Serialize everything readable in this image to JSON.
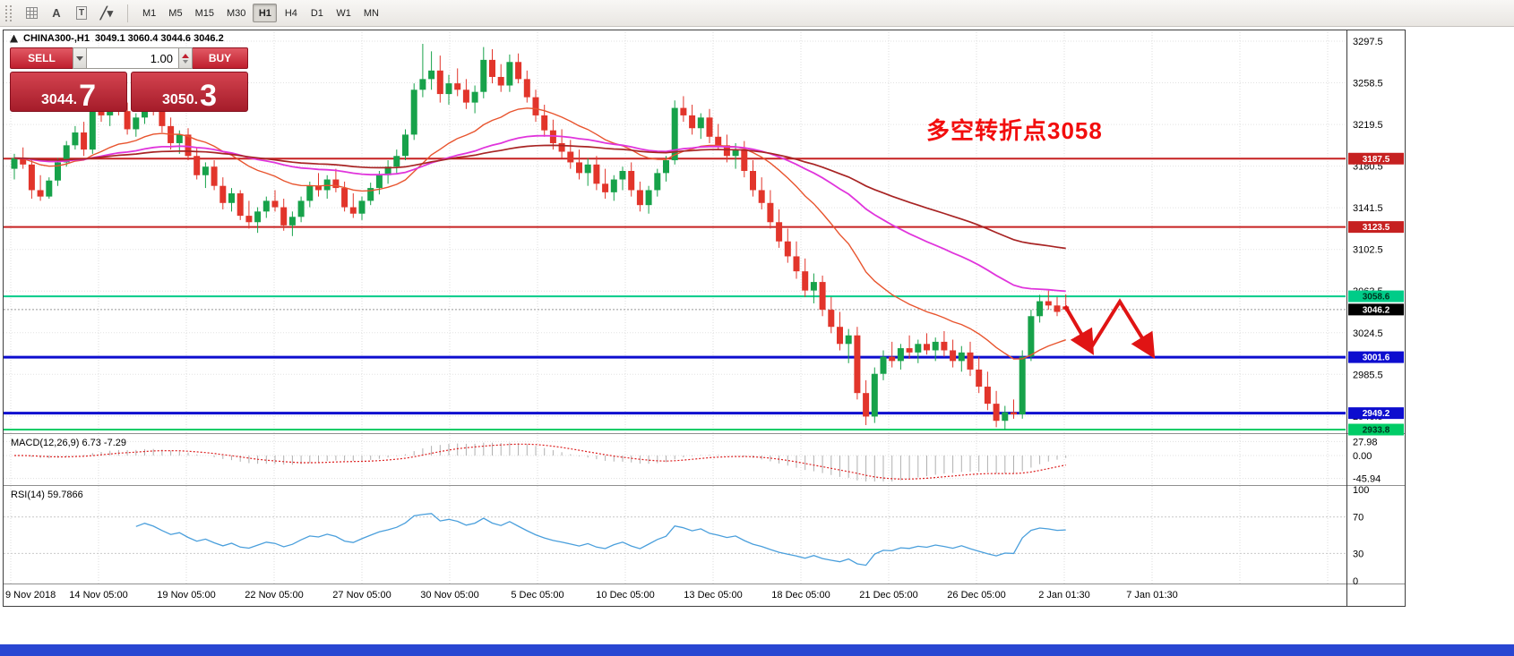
{
  "toolbar": {
    "icons": [
      {
        "name": "toolbar-grip-icon",
        "type": "grip"
      },
      {
        "name": "crosshair-grid-icon",
        "type": "grid"
      },
      {
        "name": "text-annotation-icon",
        "glyph": "A"
      },
      {
        "name": "text-label-icon",
        "glyph": "T",
        "boxed": true
      },
      {
        "name": "draw-shapes-icon",
        "glyph": "╱▾"
      }
    ],
    "timeframes": [
      {
        "label": "M1",
        "active": false
      },
      {
        "label": "M5",
        "active": false
      },
      {
        "label": "M15",
        "active": false
      },
      {
        "label": "M30",
        "active": false
      },
      {
        "label": "H1",
        "active": true
      },
      {
        "label": "H4",
        "active": false
      },
      {
        "label": "D1",
        "active": false
      },
      {
        "label": "W1",
        "active": false
      },
      {
        "label": "MN",
        "active": false
      }
    ]
  },
  "symbol_header": {
    "symbol": "CHINA300-,H1",
    "ohlc": "3049.1 3060.4 3044.6 3046.2"
  },
  "trade_panel": {
    "sell_label": "SELL",
    "buy_label": "BUY",
    "volume": "1.00",
    "sell_price_main": "3044.",
    "sell_price_big": "7",
    "buy_price_main": "3050.",
    "buy_price_big": "3"
  },
  "annotation": {
    "text": "多空转折点3058"
  },
  "colors": {
    "up": "#17a24a",
    "down": "#e2352b",
    "grid": "#e2e2e2",
    "bottom_bar": "#2946d2",
    "annotation_red": "#f20d0d",
    "arrow_red": "#e01414",
    "macd_hist": "#b0b0b0",
    "macd_signal": "#dd2222",
    "rsi_line": "#4a9fdc"
  },
  "levels": [
    {
      "price": 3187.5,
      "label": "3187.5",
      "color": "#c62121",
      "width": 2,
      "text_color": "#ffffff"
    },
    {
      "price": 3123.5,
      "label": "3123.5",
      "color": "#c62121",
      "width": 2,
      "text_color": "#ffffff"
    },
    {
      "price": 3058.6,
      "label": "3058.6",
      "color": "#00cc88",
      "width": 2,
      "text_color": "#00331f"
    },
    {
      "price": 3001.6,
      "label": "3001.6",
      "color": "#0d0dcf",
      "width": 3,
      "text_color": "#ffffff"
    },
    {
      "price": 2949.2,
      "label": "2949.2",
      "color": "#0d0dcf",
      "width": 3,
      "text_color": "#ffffff"
    },
    {
      "price": 2933.8,
      "label": "2933.8",
      "color": "#00cc66",
      "width": 2,
      "text_color": "#00331f"
    }
  ],
  "current_price": {
    "value": 3046.2,
    "label": "3046.2",
    "badge_color": "#000000",
    "text_color": "#ffffff"
  },
  "chart_data": {
    "type": "candlestick",
    "symbol": "CHINA300-",
    "timeframe": "H1",
    "title": "CHINA300-,H1 3049.1 3060.4 3044.6 3046.2",
    "y_ticks": [
      3297.5,
      3258.5,
      3219.5,
      3180.5,
      3141.5,
      3102.5,
      3063.5,
      3024.5,
      2985.5,
      2946.5
    ],
    "y_range": [
      2928,
      3308
    ],
    "x_labels": [
      "9 Nov 2018",
      "14 Nov 05:00",
      "19 Nov 05:00",
      "22 Nov 05:00",
      "27 Nov 05:00",
      "30 Nov 05:00",
      "5 Dec 05:00",
      "10 Dec 05:00",
      "13 Dec 05:00",
      "18 Dec 05:00",
      "21 Dec 05:00",
      "26 Dec 05:00",
      "2 Jan 01:30",
      "7 Jan 01:30"
    ],
    "moving_averages": [
      {
        "period": 21,
        "color": "#e8542e",
        "width": 1.4
      },
      {
        "period": 55,
        "color": "#e035dc",
        "width": 1.8
      },
      {
        "period": 100,
        "color": "#a82424",
        "width": 1.7
      }
    ],
    "ohlc": [
      [
        3178,
        3192,
        3168,
        3188
      ],
      [
        3188,
        3198,
        3178,
        3182
      ],
      [
        3182,
        3186,
        3150,
        3158
      ],
      [
        3158,
        3172,
        3148,
        3152
      ],
      [
        3152,
        3170,
        3150,
        3167
      ],
      [
        3167,
        3188,
        3162,
        3184
      ],
      [
        3184,
        3204,
        3180,
        3200
      ],
      [
        3200,
        3218,
        3196,
        3212
      ],
      [
        3212,
        3222,
        3190,
        3196
      ],
      [
        3196,
        3242,
        3192,
        3236
      ],
      [
        3236,
        3248,
        3222,
        3228
      ],
      [
        3228,
        3240,
        3218,
        3236
      ],
      [
        3236,
        3252,
        3228,
        3232
      ],
      [
        3232,
        3240,
        3210,
        3215
      ],
      [
        3215,
        3230,
        3208,
        3226
      ],
      [
        3226,
        3248,
        3220,
        3244
      ],
      [
        3244,
        3250,
        3228,
        3234
      ],
      [
        3234,
        3238,
        3212,
        3218
      ],
      [
        3218,
        3226,
        3196,
        3202
      ],
      [
        3202,
        3214,
        3192,
        3210
      ],
      [
        3210,
        3216,
        3186,
        3190
      ],
      [
        3190,
        3198,
        3168,
        3172
      ],
      [
        3172,
        3184,
        3160,
        3180
      ],
      [
        3180,
        3186,
        3158,
        3162
      ],
      [
        3162,
        3170,
        3140,
        3146
      ],
      [
        3146,
        3160,
        3138,
        3155
      ],
      [
        3155,
        3158,
        3130,
        3134
      ],
      [
        3134,
        3148,
        3122,
        3128
      ],
      [
        3128,
        3142,
        3118,
        3138
      ],
      [
        3138,
        3152,
        3132,
        3148
      ],
      [
        3148,
        3158,
        3138,
        3142
      ],
      [
        3142,
        3150,
        3120,
        3125
      ],
      [
        3125,
        3138,
        3115,
        3133
      ],
      [
        3133,
        3152,
        3128,
        3148
      ],
      [
        3148,
        3166,
        3142,
        3162
      ],
      [
        3162,
        3174,
        3152,
        3158
      ],
      [
        3158,
        3172,
        3150,
        3168
      ],
      [
        3168,
        3178,
        3156,
        3160
      ],
      [
        3160,
        3166,
        3138,
        3142
      ],
      [
        3142,
        3155,
        3132,
        3136
      ],
      [
        3136,
        3152,
        3130,
        3148
      ],
      [
        3148,
        3165,
        3144,
        3160
      ],
      [
        3160,
        3176,
        3154,
        3172
      ],
      [
        3172,
        3186,
        3164,
        3180
      ],
      [
        3180,
        3196,
        3174,
        3190
      ],
      [
        3190,
        3215,
        3186,
        3210
      ],
      [
        3210,
        3258,
        3205,
        3252
      ],
      [
        3252,
        3295,
        3245,
        3262
      ],
      [
        3262,
        3288,
        3252,
        3270
      ],
      [
        3270,
        3284,
        3240,
        3248
      ],
      [
        3248,
        3266,
        3238,
        3258
      ],
      [
        3258,
        3272,
        3246,
        3252
      ],
      [
        3252,
        3262,
        3234,
        3240
      ],
      [
        3240,
        3256,
        3230,
        3250
      ],
      [
        3250,
        3292,
        3244,
        3280
      ],
      [
        3280,
        3290,
        3258,
        3264
      ],
      [
        3264,
        3276,
        3250,
        3256
      ],
      [
        3256,
        3285,
        3250,
        3278
      ],
      [
        3278,
        3286,
        3258,
        3262
      ],
      [
        3262,
        3270,
        3240,
        3245
      ],
      [
        3245,
        3252,
        3222,
        3228
      ],
      [
        3228,
        3238,
        3208,
        3214
      ],
      [
        3214,
        3224,
        3196,
        3202
      ],
      [
        3202,
        3215,
        3188,
        3194
      ],
      [
        3194,
        3205,
        3178,
        3184
      ],
      [
        3184,
        3196,
        3168,
        3174
      ],
      [
        3174,
        3188,
        3162,
        3182
      ],
      [
        3182,
        3190,
        3158,
        3164
      ],
      [
        3164,
        3178,
        3150,
        3156
      ],
      [
        3156,
        3172,
        3148,
        3168
      ],
      [
        3168,
        3180,
        3158,
        3176
      ],
      [
        3176,
        3184,
        3152,
        3158
      ],
      [
        3158,
        3166,
        3138,
        3144
      ],
      [
        3144,
        3162,
        3136,
        3158
      ],
      [
        3158,
        3178,
        3152,
        3174
      ],
      [
        3174,
        3190,
        3166,
        3186
      ],
      [
        3186,
        3242,
        3182,
        3235
      ],
      [
        3235,
        3246,
        3222,
        3228
      ],
      [
        3228,
        3238,
        3210,
        3216
      ],
      [
        3216,
        3230,
        3206,
        3226
      ],
      [
        3226,
        3234,
        3202,
        3208
      ],
      [
        3208,
        3220,
        3196,
        3200
      ],
      [
        3200,
        3210,
        3184,
        3190
      ],
      [
        3190,
        3202,
        3178,
        3196
      ],
      [
        3196,
        3204,
        3170,
        3176
      ],
      [
        3176,
        3186,
        3152,
        3158
      ],
      [
        3158,
        3170,
        3140,
        3146
      ],
      [
        3146,
        3158,
        3122,
        3128
      ],
      [
        3128,
        3140,
        3104,
        3110
      ],
      [
        3110,
        3122,
        3090,
        3096
      ],
      [
        3096,
        3110,
        3075,
        3082
      ],
      [
        3082,
        3094,
        3058,
        3064
      ],
      [
        3064,
        3080,
        3052,
        3072
      ],
      [
        3072,
        3078,
        3040,
        3046
      ],
      [
        3046,
        3058,
        3024,
        3030
      ],
      [
        3030,
        3044,
        3008,
        3014
      ],
      [
        3014,
        3028,
        2996,
        3022
      ],
      [
        3022,
        3030,
        2962,
        2968
      ],
      [
        2968,
        2980,
        2938,
        2946
      ],
      [
        2946,
        2992,
        2940,
        2986
      ],
      [
        2986,
        3008,
        2980,
        3002
      ],
      [
        3002,
        3016,
        2992,
        2998
      ],
      [
        2998,
        3014,
        2990,
        3010
      ],
      [
        3010,
        3022,
        3000,
        3006
      ],
      [
        3006,
        3018,
        2996,
        3014
      ],
      [
        3014,
        3024,
        3004,
        3008
      ],
      [
        3008,
        3020,
        2998,
        3016
      ],
      [
        3016,
        3026,
        3002,
        3008
      ],
      [
        3008,
        3018,
        2992,
        2998
      ],
      [
        2998,
        3012,
        2988,
        3006
      ],
      [
        3006,
        3016,
        2984,
        2990
      ],
      [
        2990,
        3002,
        2968,
        2974
      ],
      [
        2974,
        2988,
        2952,
        2958
      ],
      [
        2958,
        2970,
        2936,
        2942
      ],
      [
        2942,
        2956,
        2933.8,
        2950
      ],
      [
        2950,
        2962,
        2944,
        2948
      ],
      [
        2948,
        3008,
        2944,
        3002
      ],
      [
        3002,
        3046,
        2998,
        3040
      ],
      [
        3040,
        3060,
        3034,
        3054
      ],
      [
        3054,
        3064,
        3046,
        3050
      ],
      [
        3050,
        3058,
        3040,
        3044
      ],
      [
        3049.1,
        3060.4,
        3044.6,
        3046.2
      ]
    ]
  },
  "macd": {
    "label": "MACD(12,26,9) 6.73 -7.29",
    "fast": 12,
    "slow": 26,
    "signal": 9,
    "axis_labels": [
      "27.98",
      "0.00",
      "-45.94"
    ],
    "axis_values": [
      27.98,
      0,
      -45.94
    ],
    "range": [
      -52,
      34
    ]
  },
  "rsi": {
    "label": "RSI(14) 59.7866",
    "period": 14,
    "axis_labels": [
      "100",
      "70",
      "30",
      "0"
    ],
    "axis_values": [
      100,
      70,
      30,
      0
    ],
    "levels": [
      70,
      30
    ]
  },
  "drawing_arrow": {
    "segment1": [
      [
        1185,
        308
      ],
      [
        1213,
        356
      ]
    ],
    "segment2": [
      [
        1213,
        356
      ],
      [
        1246,
        303
      ],
      [
        1281,
        360
      ]
    ]
  }
}
